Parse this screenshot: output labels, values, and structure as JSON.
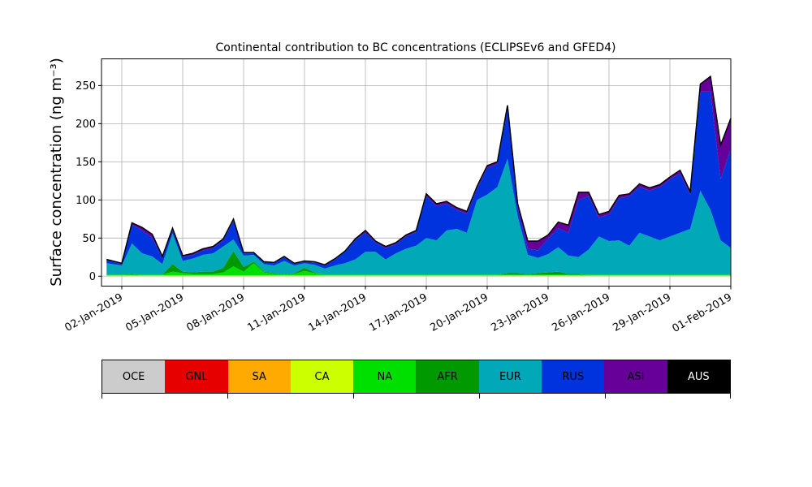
{
  "chart_data": {
    "type": "area",
    "stacked": true,
    "title": "Continental contribution to BC concentrations (ECLIPSEv6 and GFED4)",
    "ylabel": "Surface concentration (ng m⁻³)",
    "xlabel": "",
    "ylim": [
      -13,
      285
    ],
    "xlim": [
      "2019-01-01",
      "2019-02-01"
    ],
    "yticks": [
      0,
      50,
      100,
      150,
      200,
      250
    ],
    "xticks": [
      "02-Jan-2019",
      "05-Jan-2019",
      "08-Jan-2019",
      "11-Jan-2019",
      "14-Jan-2019",
      "17-Jan-2019",
      "20-Jan-2019",
      "23-Jan-2019",
      "26-Jan-2019",
      "29-Jan-2019",
      "01-Feb-2019"
    ],
    "grid": true,
    "x": [
      "2019-01-01 06:00",
      "2019-01-02 00:00",
      "2019-01-02 12:00",
      "2019-01-03 00:00",
      "2019-01-03 12:00",
      "2019-01-04 00:00",
      "2019-01-04 12:00",
      "2019-01-05 00:00",
      "2019-01-05 12:00",
      "2019-01-06 00:00",
      "2019-01-06 12:00",
      "2019-01-07 00:00",
      "2019-01-07 12:00",
      "2019-01-08 00:00",
      "2019-01-08 12:00",
      "2019-01-09 00:00",
      "2019-01-09 12:00",
      "2019-01-10 00:00",
      "2019-01-10 12:00",
      "2019-01-11 00:00",
      "2019-01-11 12:00",
      "2019-01-12 00:00",
      "2019-01-12 12:00",
      "2019-01-13 00:00",
      "2019-01-13 12:00",
      "2019-01-14 00:00",
      "2019-01-14 12:00",
      "2019-01-15 00:00",
      "2019-01-15 12:00",
      "2019-01-16 00:00",
      "2019-01-16 12:00",
      "2019-01-17 00:00",
      "2019-01-17 12:00",
      "2019-01-18 00:00",
      "2019-01-18 12:00",
      "2019-01-19 00:00",
      "2019-01-19 12:00",
      "2019-01-20 00:00",
      "2019-01-20 12:00",
      "2019-01-21 00:00",
      "2019-01-21 12:00",
      "2019-01-22 00:00",
      "2019-01-22 12:00",
      "2019-01-23 00:00",
      "2019-01-23 12:00",
      "2019-01-24 00:00",
      "2019-01-24 12:00",
      "2019-01-25 00:00",
      "2019-01-25 12:00",
      "2019-01-26 00:00",
      "2019-01-26 12:00",
      "2019-01-27 00:00",
      "2019-01-27 12:00",
      "2019-01-28 00:00",
      "2019-01-28 12:00",
      "2019-01-29 00:00",
      "2019-01-29 12:00",
      "2019-01-30 00:00",
      "2019-01-30 12:00",
      "2019-01-31 00:00",
      "2019-01-31 12:00",
      "2019-02-01 00:00"
    ],
    "series": [
      {
        "name": "OCE",
        "color": "#cccccc",
        "values": [
          0,
          0,
          0,
          0,
          0,
          0,
          0,
          0,
          0,
          0,
          0,
          0,
          0,
          0,
          0,
          0,
          0,
          0,
          0,
          0,
          0,
          0,
          0,
          0,
          0,
          0,
          0,
          0,
          0,
          0,
          0,
          0,
          0,
          0,
          0,
          0,
          0,
          0,
          0,
          0,
          0,
          0,
          0,
          0,
          0,
          0,
          0,
          0,
          0,
          0,
          0,
          0,
          0,
          0,
          0,
          0,
          0,
          0,
          0,
          0,
          0,
          0
        ]
      },
      {
        "name": "GNL",
        "color": "#e60000",
        "values": [
          0,
          0,
          0,
          0,
          0,
          0,
          0,
          0,
          0,
          0,
          0,
          0,
          0,
          0,
          0,
          0,
          0,
          0,
          0,
          0,
          0,
          0,
          0,
          0,
          0,
          0,
          0,
          0,
          0,
          0,
          0,
          0,
          0,
          0,
          0,
          0,
          0,
          0,
          0,
          0,
          0,
          0,
          0,
          0,
          0,
          0,
          0,
          0,
          0,
          0,
          0,
          0,
          0,
          0,
          0,
          0,
          0,
          0,
          0,
          0,
          0,
          0
        ]
      },
      {
        "name": "SA",
        "color": "#ffaa00",
        "values": [
          0,
          0,
          0,
          0,
          0,
          0,
          0,
          0,
          0,
          0,
          0,
          0,
          0,
          0,
          0,
          0,
          0,
          0,
          0,
          0,
          0,
          0,
          0,
          0,
          0,
          0,
          0,
          0,
          0,
          0,
          0,
          0,
          0,
          0,
          0,
          0,
          0,
          0,
          0,
          0,
          0,
          0,
          0,
          0,
          0,
          0,
          0,
          0,
          0,
          0,
          0,
          0,
          0,
          0,
          0,
          0,
          0,
          0,
          0,
          0,
          0,
          0
        ]
      },
      {
        "name": "CA",
        "color": "#ccff00",
        "values": [
          1,
          1,
          1,
          1,
          1,
          1,
          1,
          1,
          1,
          1,
          1,
          1,
          1,
          1,
          1,
          1,
          1,
          1,
          1,
          1,
          1,
          1,
          1,
          1,
          1,
          1,
          1,
          1,
          1,
          1,
          1,
          1,
          1,
          1,
          1,
          1,
          1,
          1,
          1,
          1,
          1,
          1,
          1,
          1,
          1,
          1,
          1,
          1,
          1,
          1,
          1,
          1,
          1,
          1,
          1,
          1,
          1,
          1,
          1,
          1,
          1,
          1
        ]
      },
      {
        "name": "NA",
        "color": "#00e000",
        "values": [
          1,
          1,
          1,
          1,
          1,
          1,
          5,
          3,
          2,
          2,
          2,
          4,
          12,
          5,
          16,
          4,
          2,
          1,
          2,
          6,
          3,
          1,
          1,
          1,
          1,
          1,
          1,
          1,
          1,
          1,
          1,
          1,
          1,
          1,
          1,
          1,
          1,
          1,
          1,
          1,
          1,
          1,
          1,
          1,
          1,
          1,
          1,
          1,
          1,
          1,
          1,
          1,
          1,
          1,
          1,
          1,
          1,
          1,
          1,
          1,
          1,
          1
        ]
      },
      {
        "name": "AFR",
        "color": "#009900",
        "values": [
          0,
          0,
          1,
          0,
          0,
          0,
          10,
          2,
          2,
          3,
          3,
          6,
          20,
          6,
          2,
          1,
          1,
          0,
          1,
          4,
          1,
          0,
          0,
          0,
          0,
          0,
          0,
          0,
          0,
          0,
          0,
          0,
          0,
          0,
          0,
          0,
          0,
          0,
          0,
          2,
          2,
          1,
          2,
          3,
          4,
          1,
          1,
          0,
          0,
          0,
          0,
          0,
          0,
          0,
          0,
          0,
          0,
          0,
          0,
          0,
          0,
          0
        ]
      },
      {
        "name": "EUR",
        "color": "#00a8b8",
        "values": [
          15,
          12,
          40,
          28,
          24,
          14,
          40,
          14,
          18,
          22,
          24,
          28,
          15,
          15,
          9,
          10,
          10,
          18,
          10,
          6,
          10,
          8,
          12,
          15,
          20,
          30,
          30,
          20,
          28,
          34,
          38,
          48,
          45,
          58,
          60,
          55,
          98,
          105,
          115,
          150,
          75,
          25,
          20,
          24,
          32,
          24,
          22,
          33,
          50,
          44,
          45,
          38,
          55,
          50,
          45,
          50,
          55,
          60,
          110,
          85,
          45,
          35
        ]
      },
      {
        "name": "RUS",
        "color": "#0033dd",
        "values": [
          4,
          2,
          25,
          30,
          24,
          8,
          5,
          5,
          5,
          6,
          7,
          8,
          25,
          3,
          2,
          2,
          3,
          5,
          2,
          2,
          3,
          4,
          8,
          15,
          25,
          25,
          12,
          15,
          12,
          16,
          18,
          55,
          45,
          35,
          25,
          25,
          15,
          35,
          30,
          65,
          10,
          8,
          10,
          20,
          25,
          30,
          75,
          70,
          25,
          35,
          55,
          65,
          60,
          60,
          70,
          75,
          78,
          45,
          130,
          155,
          80,
          130
        ]
      },
      {
        "name": "ASI",
        "color": "#660099",
        "values": [
          1,
          1,
          2,
          4,
          5,
          2,
          2,
          2,
          2,
          2,
          2,
          2,
          2,
          1,
          1,
          1,
          1,
          1,
          1,
          1,
          1,
          1,
          1,
          1,
          2,
          3,
          2,
          2,
          2,
          2,
          2,
          3,
          3,
          3,
          3,
          3,
          3,
          3,
          3,
          5,
          6,
          10,
          12,
          5,
          8,
          10,
          10,
          5,
          4,
          4,
          4,
          3,
          4,
          4,
          3,
          3,
          4,
          4,
          10,
          20,
          45,
          40
        ]
      },
      {
        "name": "AUS",
        "color": "#000000",
        "values": [
          0,
          0,
          0,
          0,
          0,
          0,
          0,
          0,
          0,
          0,
          0,
          0,
          0,
          0,
          0,
          0,
          0,
          0,
          0,
          0,
          0,
          0,
          0,
          0,
          0,
          0,
          0,
          0,
          0,
          0,
          0,
          0,
          0,
          0,
          0,
          0,
          0,
          0,
          0,
          0,
          0,
          0,
          0,
          0,
          0,
          0,
          0,
          0,
          0,
          0,
          0,
          0,
          0,
          0,
          0,
          0,
          0,
          0,
          0,
          0,
          0,
          0
        ]
      }
    ],
    "legend": {
      "placement": "bottom-colorbar",
      "entries": [
        "OCE",
        "GNL",
        "SA",
        "CA",
        "NA",
        "AFR",
        "EUR",
        "RUS",
        "ASI",
        "AUS"
      ]
    }
  }
}
